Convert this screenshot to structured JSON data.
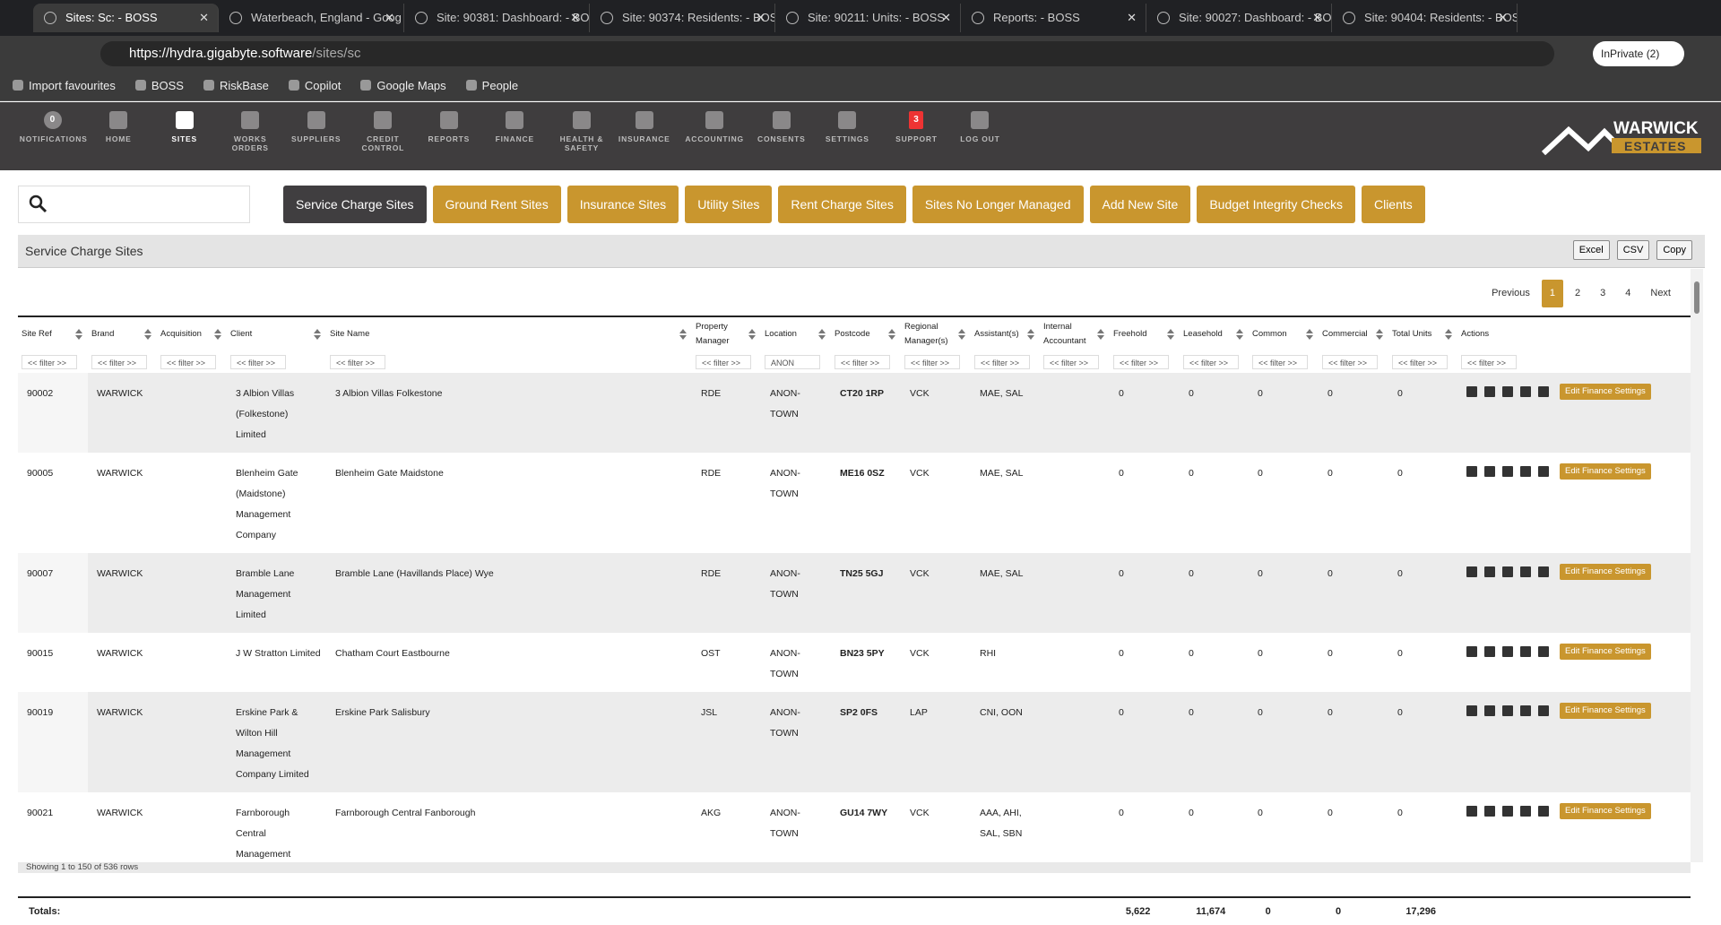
{
  "browser": {
    "tabs": [
      "Sites: Sc: - BOSS",
      "Waterbeach, England - Goog",
      "Site: 90381: Dashboard: - BO",
      "Site: 90374: Residents: - BOS",
      "Site: 90211: Units: - BOSS",
      "Reports: - BOSS",
      "Site: 90027: Dashboard: - BO",
      "Site: 90404: Residents: - BOS"
    ],
    "url_host": "https://hydra.gigabyte.software",
    "url_path": "/sites/sc",
    "profile": "InPrivate (2)",
    "favourites": [
      "Import favourites",
      "BOSS",
      "RiskBase",
      "Copilot",
      "Google Maps",
      "People"
    ]
  },
  "app": {
    "nav": [
      {
        "label": "NOTIFICATIONS",
        "badge": "0"
      },
      {
        "label": "HOME"
      },
      {
        "label": "SITES"
      },
      {
        "label": "WORKS ORDERS"
      },
      {
        "label": "SUPPLIERS"
      },
      {
        "label": "CREDIT CONTROL"
      },
      {
        "label": "REPORTS"
      },
      {
        "label": "FINANCE"
      },
      {
        "label": "HEALTH & SAFETY"
      },
      {
        "label": "INSURANCE"
      },
      {
        "label": "ACCOUNTING"
      },
      {
        "label": "CONSENTS"
      },
      {
        "label": "SETTINGS"
      },
      {
        "label": "SUPPORT",
        "badge": "3"
      },
      {
        "label": "LOG OUT"
      }
    ],
    "logo_top": "WARWICK",
    "logo_bottom": "ESTATES"
  },
  "toolbar": {
    "buttons": [
      "Service Charge Sites",
      "Ground Rent Sites",
      "Insurance Sites",
      "Utility Sites",
      "Rent Charge Sites",
      "Sites No Longer Managed",
      "Add New Site",
      "Budget Integrity Checks",
      "Clients"
    ]
  },
  "table": {
    "title": "Service Charge Sites",
    "exports": [
      "Excel",
      "CSV",
      "Copy"
    ],
    "pagination": [
      "Previous",
      "1",
      "2",
      "3",
      "4",
      "Next"
    ],
    "columns": [
      "Site Ref",
      "Brand",
      "Acquisition",
      "Client",
      "Site Name",
      "Property Manager",
      "Location",
      "Postcode",
      "Regional Manager(s)",
      "Assistant(s)",
      "Internal Accountant",
      "Freehold",
      "Leasehold",
      "Common",
      "Commercial",
      "Total Units",
      "Actions"
    ],
    "filters": [
      "<< filter >>",
      "<< filter >>",
      "<< filter >>",
      "<< filter >>",
      "<< filter >>",
      "<< filter >>",
      "ANON",
      "<< filter >>",
      "<< filter >>",
      "<< filter >>",
      "<< filter >>",
      "<< filter >>",
      "<< filter >>",
      "<< filter >>",
      "<< filter >>",
      "<< filter >>",
      "<< filter >>"
    ],
    "rows": [
      [
        "90002",
        "WARWICK",
        null,
        "3 Albion Villas (Folkestone) Limited",
        "3 Albion Villas Folkestone",
        "RDE",
        "ANON-TOWN",
        "CT20 1RP",
        "VCK",
        "MAE, SAL",
        null,
        0,
        0,
        0,
        0,
        0
      ],
      [
        "90005",
        "WARWICK",
        null,
        "Blenheim Gate (Maidstone) Management Company",
        "Blenheim Gate Maidstone",
        "RDE",
        "ANON-TOWN",
        "ME16 0SZ",
        "VCK",
        "MAE, SAL",
        null,
        0,
        0,
        0,
        0,
        0
      ],
      [
        "90007",
        "WARWICK",
        null,
        "Bramble Lane Management Limited",
        "Bramble Lane (Havillands Place) Wye",
        "RDE",
        "ANON-TOWN",
        "TN25 5GJ",
        "VCK",
        "MAE, SAL",
        null,
        0,
        0,
        0,
        0,
        0
      ],
      [
        "90015",
        "WARWICK",
        null,
        "J W Stratton Limited",
        "Chatham Court Eastbourne",
        "OST",
        "ANON-TOWN",
        "BN23 5PY",
        "VCK",
        "RHI",
        null,
        0,
        0,
        0,
        0,
        0
      ],
      [
        "90019",
        "WARWICK",
        null,
        "Erskine Park & Wilton Hill Management Company Limited",
        "Erskine Park Salisbury",
        "JSL",
        "ANON-TOWN",
        "SP2 0FS",
        "LAP",
        "CNI, OON",
        null,
        0,
        0,
        0,
        0,
        0
      ],
      [
        "90021",
        "WARWICK",
        null,
        "Farnborough Central Management Company Limited",
        "Farnborough Central Fanborough",
        "AKG",
        "ANON-TOWN",
        "GU14 7WY",
        "VCK",
        "AAA, AHI, SAL, SBN",
        null,
        0,
        0,
        0,
        0,
        0
      ]
    ],
    "action_label": "Edit Finance Settings",
    "footer": "Showing 1 to 150 of 536 rows",
    "totals": [
      "Totals:",
      null,
      null,
      null,
      null,
      null,
      null,
      null,
      null,
      null,
      null,
      "5,622",
      "11,674",
      "0",
      "0",
      "17,296",
      null
    ]
  }
}
